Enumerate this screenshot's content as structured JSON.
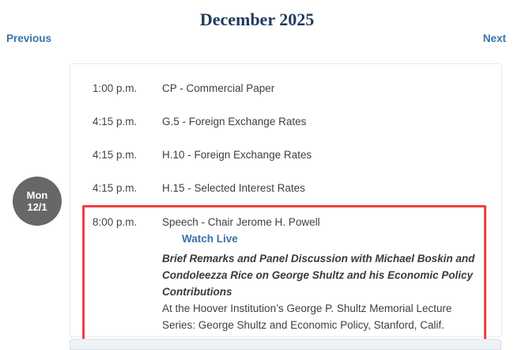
{
  "header": {
    "month_title": "December 2025",
    "previous_label": "Previous",
    "next_label": "Next"
  },
  "day": {
    "weekday": "Mon",
    "date": "12/1"
  },
  "events": [
    {
      "time": "1:00 p.m.",
      "title": "CP - Commercial Paper"
    },
    {
      "time": "4:15 p.m.",
      "title": "G.5 - Foreign Exchange Rates"
    },
    {
      "time": "4:15 p.m.",
      "title": "H.10 - Foreign Exchange Rates"
    },
    {
      "time": "4:15 p.m.",
      "title": "H.15 - Selected Interest Rates"
    },
    {
      "time": "8:00 p.m.",
      "title": "Speech - Chair Jerome H. Powell",
      "watch_live_label": "Watch Live",
      "description_bold": "Brief Remarks and Panel Discussion with Michael Boskin and Condoleezza Rice on George Shultz and his Economic Policy Contributions",
      "description": "At the Hoover Institution’s George P. Shultz Memorial Lecture Series: George Shultz and Economic Policy, Stanford, Calif.",
      "highlighted": true
    }
  ],
  "colors": {
    "title_navy": "#1f3c5c",
    "link_blue": "#3a72ad",
    "highlight_red": "#f0413f",
    "badge_gray": "#67676a",
    "card_border": "#e8e8ea",
    "next_day_strip_bg": "#eef2f7"
  }
}
